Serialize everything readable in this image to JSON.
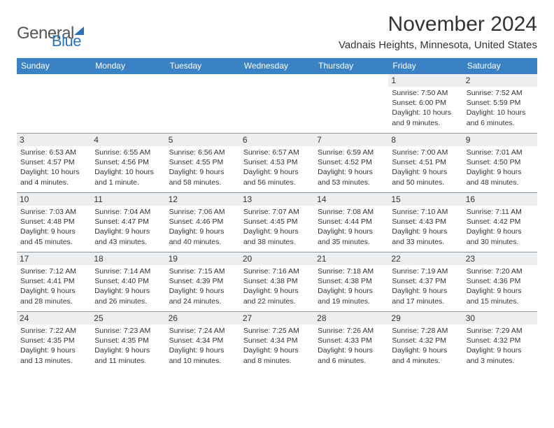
{
  "logo": {
    "word1": "General",
    "word2": "Blue"
  },
  "title": "November 2024",
  "location": "Vadnais Heights, Minnesota, United States",
  "columns": [
    "Sunday",
    "Monday",
    "Tuesday",
    "Wednesday",
    "Thursday",
    "Friday",
    "Saturday"
  ],
  "colors": {
    "header_bg": "#3a82c4",
    "stripe_bg": "#eceeef",
    "rule": "#8a98a3"
  },
  "weeks": [
    [
      {
        "n": "",
        "sr": "",
        "ss": "",
        "dl": ""
      },
      {
        "n": "",
        "sr": "",
        "ss": "",
        "dl": ""
      },
      {
        "n": "",
        "sr": "",
        "ss": "",
        "dl": ""
      },
      {
        "n": "",
        "sr": "",
        "ss": "",
        "dl": ""
      },
      {
        "n": "",
        "sr": "",
        "ss": "",
        "dl": ""
      },
      {
        "n": "1",
        "sr": "Sunrise: 7:50 AM",
        "ss": "Sunset: 6:00 PM",
        "dl": "Daylight: 10 hours and 9 minutes."
      },
      {
        "n": "2",
        "sr": "Sunrise: 7:52 AM",
        "ss": "Sunset: 5:59 PM",
        "dl": "Daylight: 10 hours and 6 minutes."
      }
    ],
    [
      {
        "n": "3",
        "sr": "Sunrise: 6:53 AM",
        "ss": "Sunset: 4:57 PM",
        "dl": "Daylight: 10 hours and 4 minutes."
      },
      {
        "n": "4",
        "sr": "Sunrise: 6:55 AM",
        "ss": "Sunset: 4:56 PM",
        "dl": "Daylight: 10 hours and 1 minute."
      },
      {
        "n": "5",
        "sr": "Sunrise: 6:56 AM",
        "ss": "Sunset: 4:55 PM",
        "dl": "Daylight: 9 hours and 58 minutes."
      },
      {
        "n": "6",
        "sr": "Sunrise: 6:57 AM",
        "ss": "Sunset: 4:53 PM",
        "dl": "Daylight: 9 hours and 56 minutes."
      },
      {
        "n": "7",
        "sr": "Sunrise: 6:59 AM",
        "ss": "Sunset: 4:52 PM",
        "dl": "Daylight: 9 hours and 53 minutes."
      },
      {
        "n": "8",
        "sr": "Sunrise: 7:00 AM",
        "ss": "Sunset: 4:51 PM",
        "dl": "Daylight: 9 hours and 50 minutes."
      },
      {
        "n": "9",
        "sr": "Sunrise: 7:01 AM",
        "ss": "Sunset: 4:50 PM",
        "dl": "Daylight: 9 hours and 48 minutes."
      }
    ],
    [
      {
        "n": "10",
        "sr": "Sunrise: 7:03 AM",
        "ss": "Sunset: 4:48 PM",
        "dl": "Daylight: 9 hours and 45 minutes."
      },
      {
        "n": "11",
        "sr": "Sunrise: 7:04 AM",
        "ss": "Sunset: 4:47 PM",
        "dl": "Daylight: 9 hours and 43 minutes."
      },
      {
        "n": "12",
        "sr": "Sunrise: 7:06 AM",
        "ss": "Sunset: 4:46 PM",
        "dl": "Daylight: 9 hours and 40 minutes."
      },
      {
        "n": "13",
        "sr": "Sunrise: 7:07 AM",
        "ss": "Sunset: 4:45 PM",
        "dl": "Daylight: 9 hours and 38 minutes."
      },
      {
        "n": "14",
        "sr": "Sunrise: 7:08 AM",
        "ss": "Sunset: 4:44 PM",
        "dl": "Daylight: 9 hours and 35 minutes."
      },
      {
        "n": "15",
        "sr": "Sunrise: 7:10 AM",
        "ss": "Sunset: 4:43 PM",
        "dl": "Daylight: 9 hours and 33 minutes."
      },
      {
        "n": "16",
        "sr": "Sunrise: 7:11 AM",
        "ss": "Sunset: 4:42 PM",
        "dl": "Daylight: 9 hours and 30 minutes."
      }
    ],
    [
      {
        "n": "17",
        "sr": "Sunrise: 7:12 AM",
        "ss": "Sunset: 4:41 PM",
        "dl": "Daylight: 9 hours and 28 minutes."
      },
      {
        "n": "18",
        "sr": "Sunrise: 7:14 AM",
        "ss": "Sunset: 4:40 PM",
        "dl": "Daylight: 9 hours and 26 minutes."
      },
      {
        "n": "19",
        "sr": "Sunrise: 7:15 AM",
        "ss": "Sunset: 4:39 PM",
        "dl": "Daylight: 9 hours and 24 minutes."
      },
      {
        "n": "20",
        "sr": "Sunrise: 7:16 AM",
        "ss": "Sunset: 4:38 PM",
        "dl": "Daylight: 9 hours and 22 minutes."
      },
      {
        "n": "21",
        "sr": "Sunrise: 7:18 AM",
        "ss": "Sunset: 4:38 PM",
        "dl": "Daylight: 9 hours and 19 minutes."
      },
      {
        "n": "22",
        "sr": "Sunrise: 7:19 AM",
        "ss": "Sunset: 4:37 PM",
        "dl": "Daylight: 9 hours and 17 minutes."
      },
      {
        "n": "23",
        "sr": "Sunrise: 7:20 AM",
        "ss": "Sunset: 4:36 PM",
        "dl": "Daylight: 9 hours and 15 minutes."
      }
    ],
    [
      {
        "n": "24",
        "sr": "Sunrise: 7:22 AM",
        "ss": "Sunset: 4:35 PM",
        "dl": "Daylight: 9 hours and 13 minutes."
      },
      {
        "n": "25",
        "sr": "Sunrise: 7:23 AM",
        "ss": "Sunset: 4:35 PM",
        "dl": "Daylight: 9 hours and 11 minutes."
      },
      {
        "n": "26",
        "sr": "Sunrise: 7:24 AM",
        "ss": "Sunset: 4:34 PM",
        "dl": "Daylight: 9 hours and 10 minutes."
      },
      {
        "n": "27",
        "sr": "Sunrise: 7:25 AM",
        "ss": "Sunset: 4:34 PM",
        "dl": "Daylight: 9 hours and 8 minutes."
      },
      {
        "n": "28",
        "sr": "Sunrise: 7:26 AM",
        "ss": "Sunset: 4:33 PM",
        "dl": "Daylight: 9 hours and 6 minutes."
      },
      {
        "n": "29",
        "sr": "Sunrise: 7:28 AM",
        "ss": "Sunset: 4:32 PM",
        "dl": "Daylight: 9 hours and 4 minutes."
      },
      {
        "n": "30",
        "sr": "Sunrise: 7:29 AM",
        "ss": "Sunset: 4:32 PM",
        "dl": "Daylight: 9 hours and 3 minutes."
      }
    ]
  ]
}
